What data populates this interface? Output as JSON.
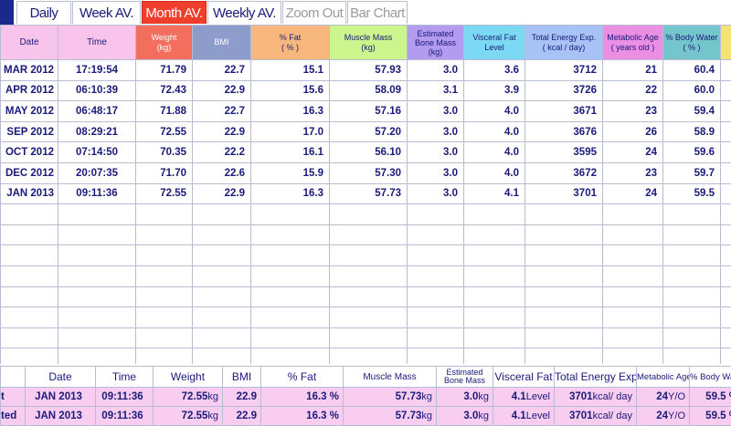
{
  "tabs": [
    {
      "label": "Daily",
      "state": "normal"
    },
    {
      "label": "Week AV.",
      "state": "normal"
    },
    {
      "label": "Month AV.",
      "state": "active"
    },
    {
      "label": "Weekly AV.",
      "state": "normal"
    },
    {
      "label": "Zoom Out",
      "state": "disabled"
    },
    {
      "label": "Bar Chart",
      "state": "disabled"
    }
  ],
  "columns": {
    "date": "Date",
    "time": "Time",
    "weight_l1": "Weight",
    "weight_l2": "(kg)",
    "bmi": "BMI",
    "fat_l1": "% Fat",
    "fat_l2": "( % )",
    "muscle_l1": "Muscle Mass",
    "muscle_l2": "(kg)",
    "bone_l1": "Estimated",
    "bone_l2": "Bone Mass",
    "bone_l3": "(kg)",
    "visceral_l1": "Visceral Fat",
    "visceral_l2": "Level",
    "energy_l1": "Total Energy Exp.",
    "energy_l2": "( kcal / day)",
    "metage_l1": "Metabolic Age",
    "metage_l2": "( years old )",
    "water_l1": "% Body Water",
    "water_l2": "( % )"
  },
  "header_colors": {
    "date": "#f9c4ec",
    "time": "#f9c4ec",
    "weight": "#f46e5e",
    "bmi": "#8e9ccc",
    "fat": "#f8b77d",
    "muscle": "#cdf58e",
    "bone": "#b39bf0",
    "visceral": "#7bd9f4",
    "energy": "#a7c2f4",
    "metage": "#ea8fe4",
    "water": "#74c6cc",
    "last": "#f4e274"
  },
  "rows": [
    {
      "date": "MAR 2012",
      "time": "17:19:54",
      "weight": "71.79",
      "bmi": "22.7",
      "fat": "15.1",
      "muscle": "57.93",
      "bone": "3.0",
      "visceral": "3.6",
      "energy": "3712",
      "metage": "21",
      "water": "60.4"
    },
    {
      "date": "APR 2012",
      "time": "06:10:39",
      "weight": "72.43",
      "bmi": "22.9",
      "fat": "15.6",
      "muscle": "58.09",
      "bone": "3.1",
      "visceral": "3.9",
      "energy": "3726",
      "metage": "22",
      "water": "60.0"
    },
    {
      "date": "MAY 2012",
      "time": "06:48:17",
      "weight": "71.88",
      "bmi": "22.7",
      "fat": "16.3",
      "muscle": "57.16",
      "bone": "3.0",
      "visceral": "4.0",
      "energy": "3671",
      "metage": "23",
      "water": "59.4"
    },
    {
      "date": "SEP 2012",
      "time": "08:29:21",
      "weight": "72.55",
      "bmi": "22.9",
      "fat": "17.0",
      "muscle": "57.20",
      "bone": "3.0",
      "visceral": "4.0",
      "energy": "3676",
      "metage": "26",
      "water": "58.9"
    },
    {
      "date": "OCT 2012",
      "time": "07:14:50",
      "weight": "70.35",
      "bmi": "22.2",
      "fat": "16.1",
      "muscle": "56.10",
      "bone": "3.0",
      "visceral": "4.0",
      "energy": "3595",
      "metage": "24",
      "water": "59.6"
    },
    {
      "date": "DEC 2012",
      "time": "20:07:35",
      "weight": "71.70",
      "bmi": "22.6",
      "fat": "15.9",
      "muscle": "57.30",
      "bone": "3.0",
      "visceral": "4.0",
      "energy": "3672",
      "metage": "23",
      "water": "59.7"
    },
    {
      "date": "JAN 2013",
      "time": "09:11:36",
      "weight": "72.55",
      "bmi": "22.9",
      "fat": "16.3",
      "muscle": "57.73",
      "bone": "3.0",
      "visceral": "4.1",
      "energy": "3701",
      "metage": "24",
      "water": "59.5"
    }
  ],
  "summary": {
    "headers": {
      "date": "Date",
      "time": "Time",
      "weight": "Weight",
      "bmi": "BMI",
      "fat": "% Fat",
      "muscle": "Muscle Mass",
      "bone_l1": "Estimated",
      "bone_l2": "Bone Mass",
      "visceral": "Visceral Fat",
      "energy": "Total Energy Exp.",
      "metage": "Metabolic Age",
      "water": "% Body Water"
    },
    "rows": [
      {
        "label": "t",
        "date": "JAN 2013",
        "time": "09:11:36",
        "weight": "72.55",
        "weight_unit": "kg",
        "bmi": "22.9",
        "fat": "16.3",
        "fat_unit": "%",
        "muscle": "57.73",
        "muscle_unit": "kg",
        "bone": "3.0",
        "bone_unit": "kg",
        "visceral": "4.1",
        "visceral_unit": "Level",
        "energy": "3701",
        "energy_unit": "kcal/ day",
        "metage": "24",
        "metage_unit": "Y/O",
        "water": "59.5",
        "water_unit": "%"
      },
      {
        "label": "ted",
        "date": "JAN 2013",
        "time": "09:11:36",
        "weight": "72.55",
        "weight_unit": "kg",
        "bmi": "22.9",
        "fat": "16.3",
        "fat_unit": "%",
        "muscle": "57.73",
        "muscle_unit": "kg",
        "bone": "3.0",
        "bone_unit": "kg",
        "visceral": "4.1",
        "visceral_unit": "Level",
        "energy": "3701",
        "energy_unit": "kcal/ day",
        "metage": "24",
        "metage_unit": "Y/O",
        "water": "59.5",
        "water_unit": "%"
      }
    ]
  }
}
